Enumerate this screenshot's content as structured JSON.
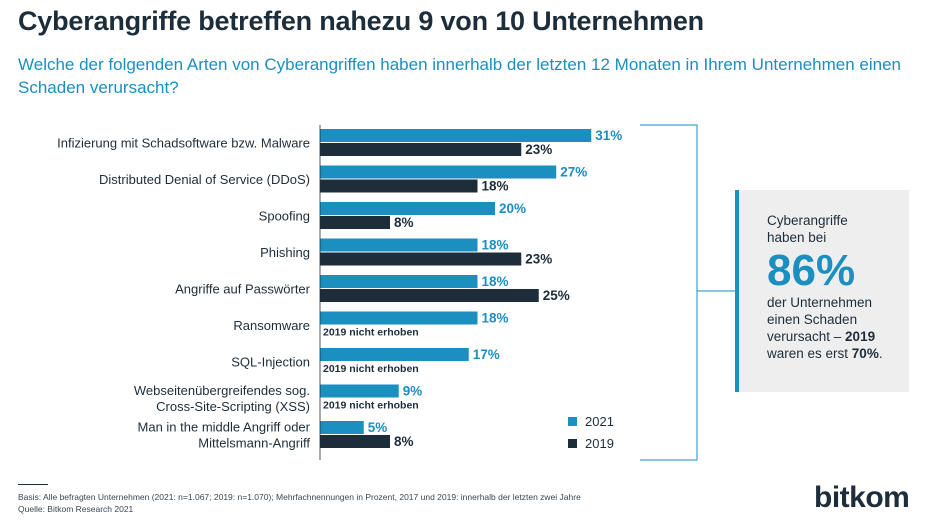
{
  "title": "Cyberangriffe betreffen nahezu 9 von 10 Unternehmen",
  "subtitle": "Welche der folgenden Arten von Cyberangriffen haben innerhalb der letzten 12 Monaten in Ihrem Unternehmen einen Schaden verursacht?",
  "colors": {
    "y2021": "#1a8fc0",
    "y2019": "#1d2d3a",
    "accent": "#1a8fc0",
    "box_bg": "#eeeeee"
  },
  "chart_data": {
    "type": "bar",
    "orientation": "horizontal",
    "value_suffix": "%",
    "categories": [
      [
        "Infizierung mit Schadsoftware bzw. Malware"
      ],
      [
        "Distributed Denial of Service (DDoS)"
      ],
      [
        "Spoofing"
      ],
      [
        "Phishing"
      ],
      [
        "Angriffe auf Passwörter"
      ],
      [
        "Ransomware"
      ],
      [
        "SQL-Injection"
      ],
      [
        "Webseitenübergreifendes sog.",
        "Cross-Site-Scripting (XSS)"
      ],
      [
        "Man in the middle Angriff oder",
        "Mittelsmann-Angriff"
      ]
    ],
    "series": [
      {
        "name": "2021",
        "values": [
          31,
          27,
          20,
          18,
          18,
          18,
          17,
          9,
          5
        ]
      },
      {
        "name": "2019",
        "values": [
          23,
          18,
          8,
          23,
          25,
          null,
          null,
          null,
          8
        ]
      }
    ],
    "missing_label": "2019 nicht erhoben",
    "legend_position": "bottom-right"
  },
  "note": {
    "line1": "Cyberangriffe",
    "line2": "haben bei",
    "big": "86%",
    "line3": "der Unternehmen",
    "line4": "einen Schaden",
    "line5_pre": "verursacht – ",
    "line5_bold": "2019",
    "line6_pre": "waren es erst ",
    "line6_bold": "70%",
    "line6_post": "."
  },
  "footer": {
    "basis": "Basis: Alle befragten Unternehmen (2021: n=1.067; 2019: n=1.070); Mehrfachnennungen in Prozent, 2017 und 2019: innerhalb der letzten zwei Jahre",
    "source": "Quelle: Bitkom Research 2021"
  },
  "logo": "bitkom"
}
